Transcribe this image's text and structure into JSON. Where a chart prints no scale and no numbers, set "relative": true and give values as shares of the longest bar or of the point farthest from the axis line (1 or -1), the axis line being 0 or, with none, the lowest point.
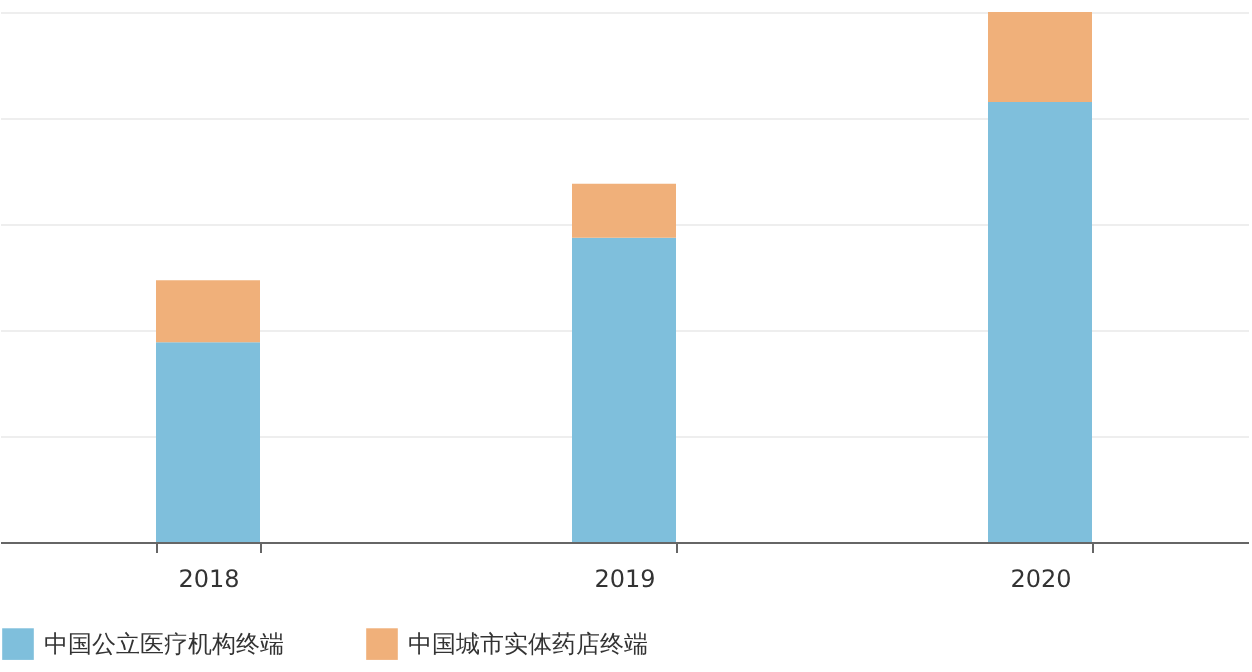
{
  "chart_data": {
    "type": "bar",
    "stacked": true,
    "relative": true,
    "categories": [
      "2018",
      "2019",
      "2020"
    ],
    "series": [
      {
        "name": "中国公立医疗机构终端",
        "color": "#7fbfdc",
        "values": [
          0.377,
          0.574,
          0.83
        ]
      },
      {
        "name": "中国城市实体药店终端",
        "color": "#f0b07a",
        "values": [
          0.117,
          0.102,
          0.17
        ]
      }
    ],
    "grid": "y",
    "legend": "bottom"
  }
}
